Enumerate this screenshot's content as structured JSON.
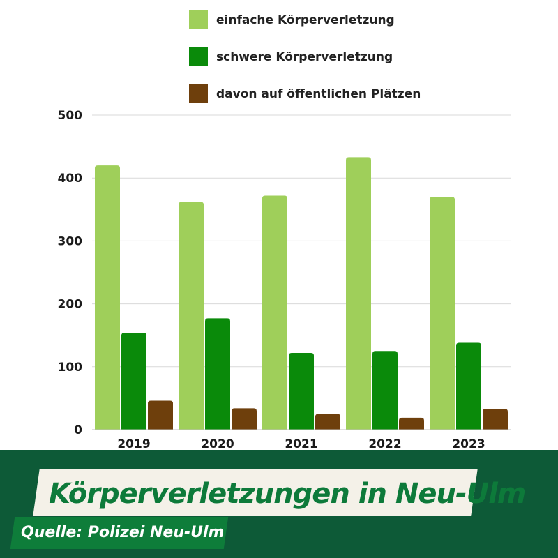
{
  "colors": {
    "einfach": "#9fcf5a",
    "schwer": "#0a8a0a",
    "oeffentlich": "#6e3f0c",
    "grid": "#d9d9d9",
    "footer_bg": "#0d5a37",
    "title_banner_bg": "#f4f1e8",
    "title_text": "#0d7a3a",
    "source_banner_bg": "#0e7d3a"
  },
  "chart_data": {
    "type": "bar",
    "title": "",
    "xlabel": "",
    "ylabel": "",
    "ylim": [
      0,
      500
    ],
    "yticks": [
      0,
      100,
      200,
      300,
      400,
      500
    ],
    "grid": true,
    "legend_position": "top",
    "categories": [
      "2019",
      "2020",
      "2021",
      "2022",
      "2023"
    ],
    "series": [
      {
        "name": "einfache Körperverletzung",
        "color_key": "einfach",
        "values": [
          420,
          362,
          372,
          433,
          370
        ]
      },
      {
        "name": "schwere Körperverletzung",
        "color_key": "schwer",
        "values": [
          154,
          177,
          122,
          125,
          138
        ]
      },
      {
        "name": "davon auf öffentlichen Plätzen",
        "color_key": "oeffentlich",
        "values": [
          46,
          34,
          25,
          19,
          33
        ]
      }
    ]
  },
  "footer": {
    "title": "Körperverletzungen in Neu-Ulm",
    "source": "Quelle: Polizei Neu-Ulm"
  }
}
